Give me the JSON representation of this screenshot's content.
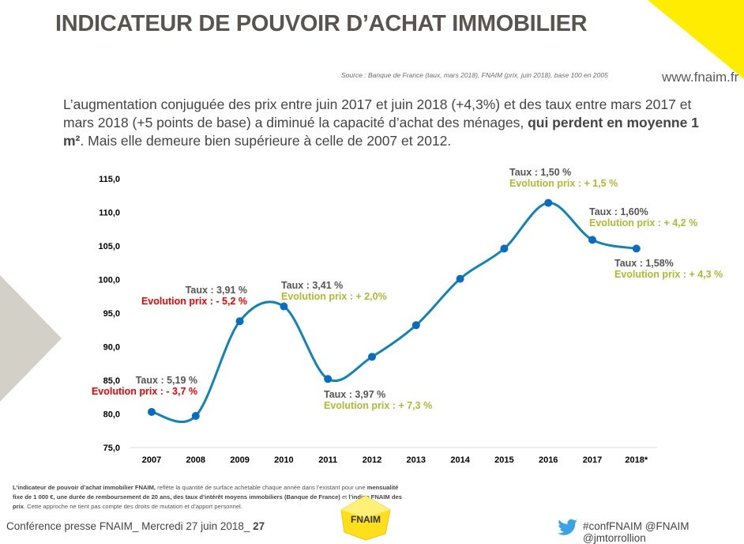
{
  "header": {
    "title": "INDICATEUR DE POUVOIR D’ACHAT IMMOBILIER",
    "source": "Source : Banque de France  (taux, mars 2018), FNAIM (prix, juin 2018), base 100 en 2005",
    "url": "www.fnaim.fr",
    "accent_color": "#ffec00"
  },
  "intro": {
    "part1": "L’augmentation conjuguée des prix entre juin 2017 et juin 2018 (+4,3%) et des taux entre mars 2017 et mars 2018 (+5 points de base) a diminué la capacité d’achat des ménages, ",
    "bold": "qui perdent en moyenne 1 m²",
    "part2": ". Mais elle demeure bien supérieure à celle de 2007 et 2012."
  },
  "chart_data": {
    "type": "line",
    "smooth": true,
    "categories": [
      "2007",
      "2008",
      "2009",
      "2010",
      "2011",
      "2012",
      "2013",
      "2014",
      "2015",
      "2016",
      "2017",
      "2018*"
    ],
    "values": [
      80.3,
      79.7,
      93.8,
      96.0,
      85.2,
      88.5,
      93.2,
      100.1,
      104.6,
      111.4,
      105.9,
      104.6
    ],
    "ylim": [
      75,
      115
    ],
    "yticks": [
      "75,0",
      "80,0",
      "85,0",
      "90,0",
      "95,0",
      "100,0",
      "105,0",
      "110,0",
      "115,0"
    ],
    "grid": false,
    "line_color": "#1183b5",
    "marker_color": "#0a6cc0",
    "annotations": [
      {
        "taux": "Taux : 5,19 %",
        "prix": "Evolution prix : - 3,7 %",
        "prix_color": "#f00000"
      },
      {
        "taux": "Taux : 3,91 %",
        "prix": "Evolution prix : - 5,2 %",
        "prix_color": "#f00000"
      },
      {
        "taux": "Taux : 3,41 %",
        "prix": "Evolution prix : + 2,0%",
        "prix_color": "#a9bc32"
      },
      {
        "taux": "Taux : 3,97 %",
        "prix": "Evolution prix : + 7,3 %",
        "prix_color": "#a9bc32"
      },
      {
        "taux": "Taux : 1,50 %",
        "prix": "Evolution prix : + 1,5 %",
        "prix_color": "#a9bc32"
      },
      {
        "taux": "Taux : 1,60%",
        "prix": "Evolution prix : + 4,2 %",
        "prix_color": "#a9bc32"
      },
      {
        "taux": "Taux : 1,58%",
        "prix": "Evolution prix : + 4,3 %",
        "prix_color": "#a9bc32"
      }
    ]
  },
  "note": {
    "b1": "L’indicateur de pouvoir d’achat immobilier FNAIM,",
    "t1": " reflète la quantité de surface achetable chaque année dans l’existant pour une ",
    "b2": "mensualité fixe de 1 000 €, une durée de remboursement de 20 ans, des taux d’intérêt  moyens immobiliers (Banque de France)",
    "t2": " et ",
    "b3": " l’indice FNAIM des prix",
    "t3": ". Cette approche ne tient pas compte des droits de mutation et d’apport personnel."
  },
  "footer": {
    "text": "Conférence presse FNAIM_ Mercredi 27 juin 2018_ ",
    "page": "27",
    "logo": "FNAIM",
    "twitter": "#confFNAIM @FNAIM @jmtorrollion"
  }
}
